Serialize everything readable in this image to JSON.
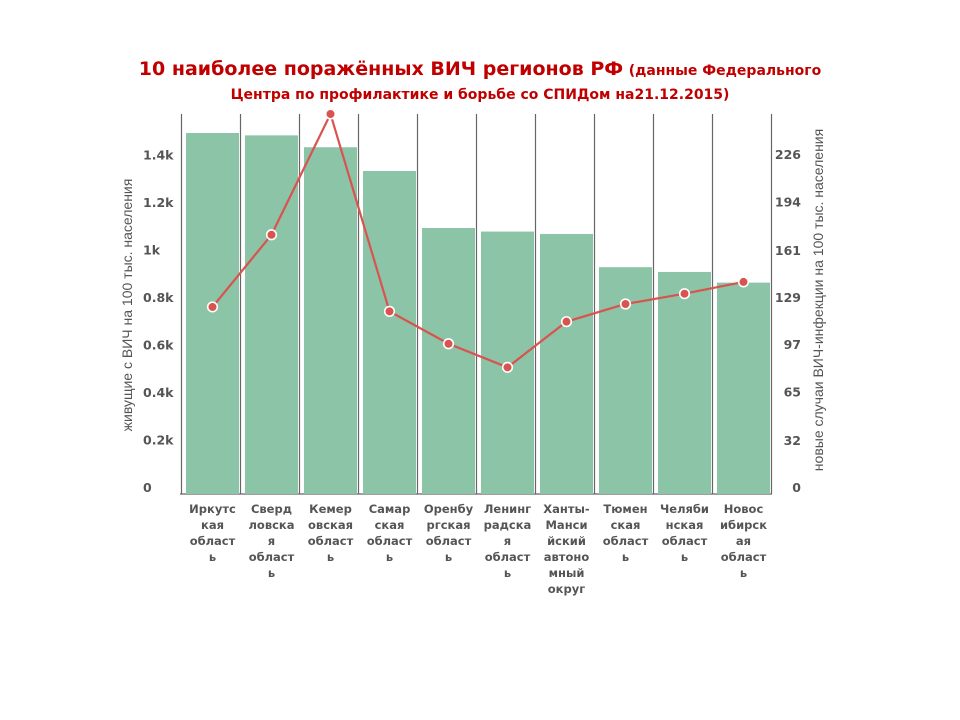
{
  "title": {
    "main": "10 наиболее поражённых ВИЧ регионов РФ",
    "sub_part1": "(данные Федерального",
    "line2": "Центра по профилактике и борьбе со СПИДом на21.12.2015)"
  },
  "chart_data": {
    "type": "bar",
    "left_axis": {
      "label": "живущие с ВИЧ на 100 тыс. населения",
      "range": [
        0,
        1600
      ],
      "ticks": [
        0,
        200,
        400,
        600,
        800,
        1000,
        1200,
        1400
      ],
      "tick_labels": [
        "0",
        "0.2k",
        "0.4k",
        "0.6k",
        "0.8k",
        "1k",
        "1.2k",
        "1.4k"
      ]
    },
    "right_axis": {
      "label": "новые случаи ВИЧ-инфекции на 100 тыс. населения",
      "range": [
        0,
        258
      ],
      "ticks": [
        0,
        32,
        65,
        97,
        129,
        161,
        194,
        226
      ],
      "tick_labels": [
        "0",
        "32",
        "65",
        "97",
        "129",
        "161",
        "194",
        "226"
      ]
    },
    "categories": [
      [
        "Иркутс",
        "кая",
        "област",
        "ь"
      ],
      [
        "Сверд",
        "ловска",
        "я",
        "област",
        "ь"
      ],
      [
        "Кемер",
        "овская",
        "област",
        "ь"
      ],
      [
        "Самар",
        "ская",
        "област",
        "ь"
      ],
      [
        "Оренбу",
        "ргская",
        "област",
        "ь"
      ],
      [
        "Ленинг",
        "радска",
        "я",
        "област",
        "ь"
      ],
      [
        "Ханты-",
        "Манси",
        "йский",
        "автоно",
        "мный",
        "округ"
      ],
      [
        "Тюмен",
        "ская",
        "област",
        "ь"
      ],
      [
        "Челяби",
        "нская",
        "област",
        "ь"
      ],
      [
        "Новос",
        "ибирск",
        "ая",
        "област",
        "ь"
      ]
    ],
    "series": [
      {
        "type": "bar",
        "axis": "left",
        "values": [
          1520,
          1510,
          1460,
          1360,
          1120,
          1105,
          1095,
          955,
          935,
          890
        ]
      },
      {
        "type": "line",
        "axis": "right",
        "values": [
          127,
          176,
          258,
          124,
          102,
          86,
          117,
          129,
          136,
          144
        ]
      }
    ],
    "grid": true,
    "colors": {
      "bar": "#8cc4a7",
      "line": "#d9534f",
      "grid": "#666666"
    }
  }
}
